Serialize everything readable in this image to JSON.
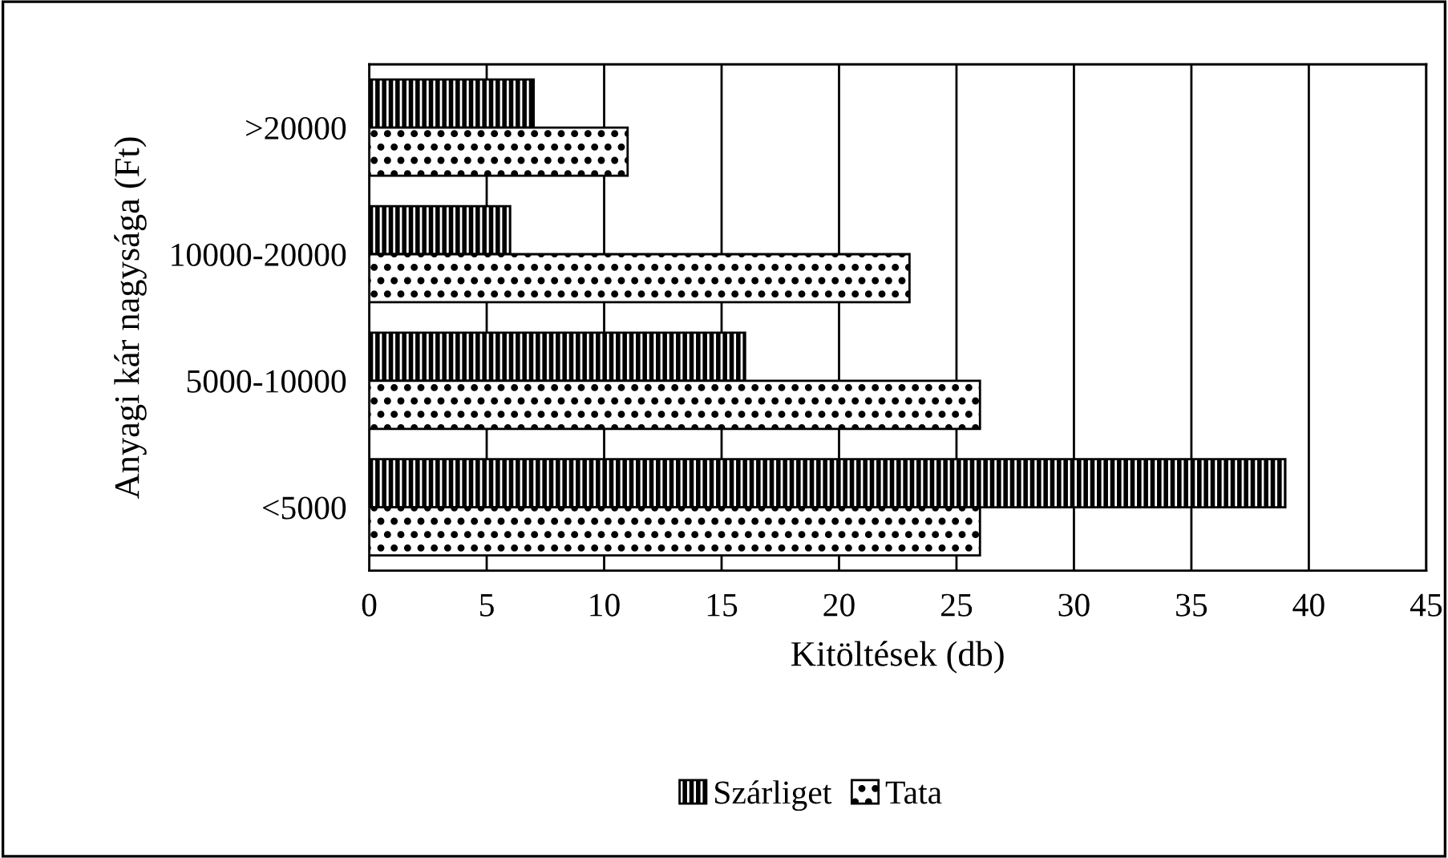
{
  "chart_data": {
    "type": "bar",
    "orientation": "horizontal",
    "categories": [
      ">20000",
      "10000-20000",
      "5000-10000",
      "<5000"
    ],
    "series": [
      {
        "name": "Szárliget",
        "color": "#000000",
        "values": [
          7,
          6,
          16,
          39
        ]
      },
      {
        "name": "Tata",
        "color": "#000000",
        "values": [
          11,
          23,
          26,
          26
        ]
      }
    ],
    "xlabel": "Kitöltések (db)",
    "ylabel": "Anyagi kár nagysága (Ft)",
    "xlim": [
      0,
      45
    ],
    "xticks": [
      0,
      5,
      10,
      15,
      20,
      25,
      30,
      35,
      40,
      45
    ],
    "grid": "x",
    "legend": "bottom"
  }
}
